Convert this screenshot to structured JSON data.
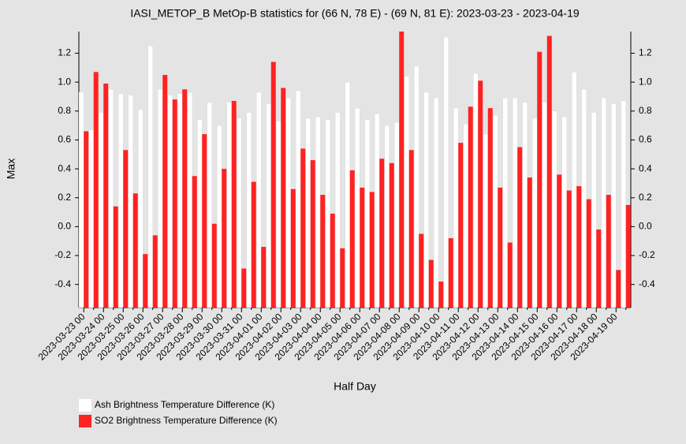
{
  "chart_data": {
    "type": "bar",
    "title": "IASI_METOP_B MetOp-B statistics for (66 N, 78 E) - (69 N, 81 E): 2023-03-23 - 2023-04-19",
    "x_label": "Half Day",
    "y_label": "Max",
    "categories": [
      "2023-03-23 00",
      null,
      "2023-03-24 00",
      null,
      "2023-03-25 00",
      null,
      "2023-03-26 00",
      null,
      "2023-03-27 00",
      null,
      "2023-03-28 00",
      null,
      "2023-03-29 00",
      null,
      "2023-03-30 00",
      null,
      "2023-03-31 00",
      null,
      "2023-04-01 00",
      null,
      "2023-04-02 00",
      null,
      "2023-04-03 00",
      null,
      "2023-04-04 00",
      null,
      "2023-04-05 00",
      null,
      "2023-04-06 00",
      null,
      "2023-04-07 00",
      null,
      "2023-04-08 00",
      null,
      "2023-04-09 00",
      null,
      "2023-04-10 00",
      null,
      "2023-04-11 00",
      null,
      "2023-04-12 00",
      null,
      "2023-04-13 00",
      null,
      "2023-04-14 00",
      null,
      "2023-04-15 00",
      null,
      "2023-04-16 00",
      null,
      "2023-04-17 00",
      null,
      "2023-04-18 00",
      null,
      "2023-04-19 00",
      null
    ],
    "series": [
      {
        "name": "Ash Brightness Temperature Difference (K)",
        "color": "#ffffff",
        "values": [
          0.93,
          0.67,
          0.79,
          0.95,
          0.92,
          0.91,
          0.81,
          1.25,
          0.95,
          0.91,
          0.92,
          0.93,
          0.74,
          0.86,
          0.7,
          0.86,
          0.75,
          0.79,
          0.93,
          0.85,
          0.73,
          0.89,
          0.94,
          0.75,
          0.76,
          0.74,
          0.79,
          1.0,
          0.82,
          0.74,
          0.78,
          0.7,
          0.72,
          1.04,
          1.11,
          0.93,
          0.89,
          1.31,
          0.82,
          0.71,
          1.06,
          0.64,
          0.77,
          0.89,
          0.89,
          0.86,
          0.75,
          0.86,
          0.8,
          0.76,
          1.07,
          0.95,
          0.79,
          0.89,
          0.85,
          0.87
        ]
      },
      {
        "name": "SO2 Brightness Temperature Difference (K)",
        "color": "#ff2222",
        "values": [
          0.66,
          1.07,
          0.99,
          0.14,
          0.53,
          0.23,
          -0.19,
          -0.06,
          1.05,
          0.88,
          0.95,
          0.35,
          0.64,
          0.02,
          0.4,
          0.87,
          -0.29,
          0.31,
          -0.14,
          1.14,
          0.96,
          0.26,
          0.54,
          0.46,
          0.22,
          0.09,
          -0.15,
          0.39,
          0.27,
          0.24,
          0.47,
          0.44,
          1.35,
          0.53,
          -0.05,
          -0.23,
          -0.38,
          -0.08,
          0.58,
          0.83,
          1.01,
          0.82,
          0.27,
          -0.11,
          0.55,
          0.34,
          1.21,
          1.32,
          0.36,
          0.25,
          0.28,
          0.19,
          -0.02,
          0.22,
          -0.3,
          0.15
        ]
      }
    ],
    "ylim": [
      -0.56,
      1.35
    ],
    "yticks": [
      -0.4,
      -0.2,
      {
        "value": 0,
        "label": "0.0"
      },
      0.2,
      0.4,
      0.6,
      0.8,
      {
        "value": 1,
        "label": "1.0"
      },
      1.2
    ]
  }
}
